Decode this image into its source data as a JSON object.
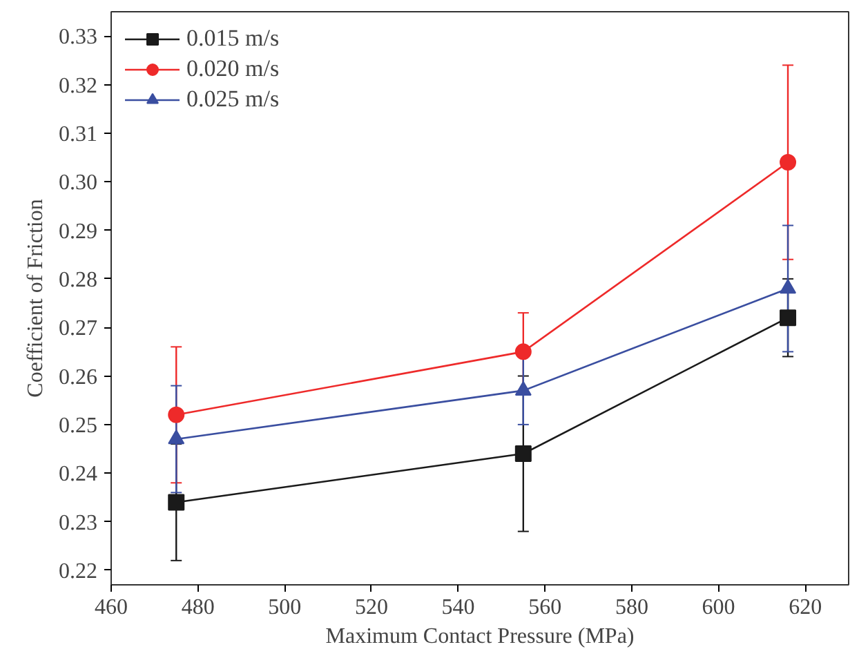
{
  "chart_data": {
    "type": "line",
    "xlabel": "Maximum Contact Pressure (MPa)",
    "ylabel": "Coefficient of Friction",
    "x": [
      475,
      555,
      616
    ],
    "series": [
      {
        "name": "0.015 m/s",
        "color": "#1a1a1a",
        "marker": "square",
        "values": [
          0.234,
          0.244,
          0.272
        ],
        "errors": [
          0.012,
          0.016,
          0.008
        ]
      },
      {
        "name": "0.020 m/s",
        "color": "#ee2a2a",
        "marker": "circle",
        "values": [
          0.252,
          0.265,
          0.304
        ],
        "errors": [
          0.014,
          0.008,
          0.02
        ]
      },
      {
        "name": "0.025 m/s",
        "color": "#3a4ea0",
        "marker": "triangle",
        "values": [
          0.247,
          0.257,
          0.278
        ],
        "errors": [
          0.011,
          0.007,
          0.013
        ]
      }
    ],
    "xlim": [
      460,
      630
    ],
    "xticks": [
      460,
      480,
      500,
      520,
      540,
      560,
      580,
      600,
      620
    ],
    "ylim": [
      0.217,
      0.335
    ],
    "yticks": [
      0.22,
      0.23,
      0.24,
      0.25,
      0.26,
      0.27,
      0.28,
      0.29,
      {
        "value": 0.3,
        "label": "0.30"
      },
      0.31,
      0.32,
      0.33
    ],
    "grid": false,
    "legend": "top left",
    "line_style": "solid"
  }
}
